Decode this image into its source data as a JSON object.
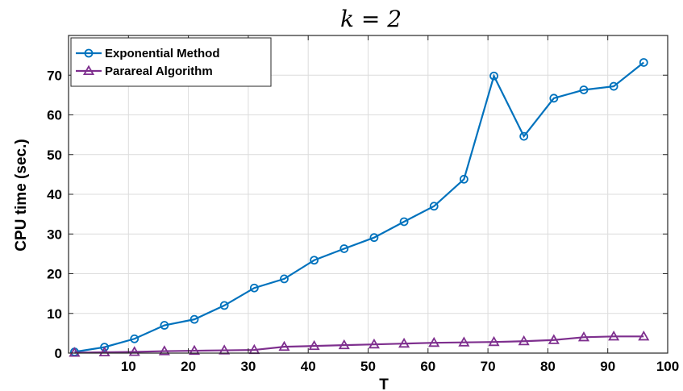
{
  "chart_data": {
    "type": "line",
    "title": "k = 2",
    "xlabel": "T",
    "ylabel": "CPU time (sec.)",
    "xlim": [
      0,
      100
    ],
    "ylim": [
      0,
      80
    ],
    "xticks": [
      10,
      20,
      30,
      40,
      50,
      60,
      70,
      80,
      90,
      100
    ],
    "yticks": [
      0,
      10,
      20,
      30,
      40,
      50,
      60,
      70
    ],
    "grid": true,
    "legend_position": "top-left",
    "x": [
      1,
      6,
      11,
      16,
      21,
      26,
      31,
      36,
      41,
      46,
      51,
      56,
      61,
      66,
      71,
      76,
      81,
      86,
      91,
      96
    ],
    "series": [
      {
        "name": "Exponential Method",
        "color": "#0072BD",
        "marker": "circle",
        "values": [
          0.3,
          1.5,
          3.6,
          7.0,
          8.5,
          12.0,
          16.4,
          18.7,
          23.4,
          26.3,
          29.1,
          33.1,
          37.0,
          43.8,
          69.8,
          54.6,
          64.2,
          66.3,
          67.2,
          73.2
        ]
      },
      {
        "name": "Parareal Algorithm",
        "color": "#7E2F8E",
        "marker": "triangle",
        "values": [
          0.1,
          0.2,
          0.3,
          0.5,
          0.6,
          0.7,
          0.8,
          1.6,
          1.8,
          2.0,
          2.2,
          2.4,
          2.6,
          2.7,
          2.8,
          3.0,
          3.3,
          4.0,
          4.2,
          4.2
        ]
      }
    ]
  }
}
